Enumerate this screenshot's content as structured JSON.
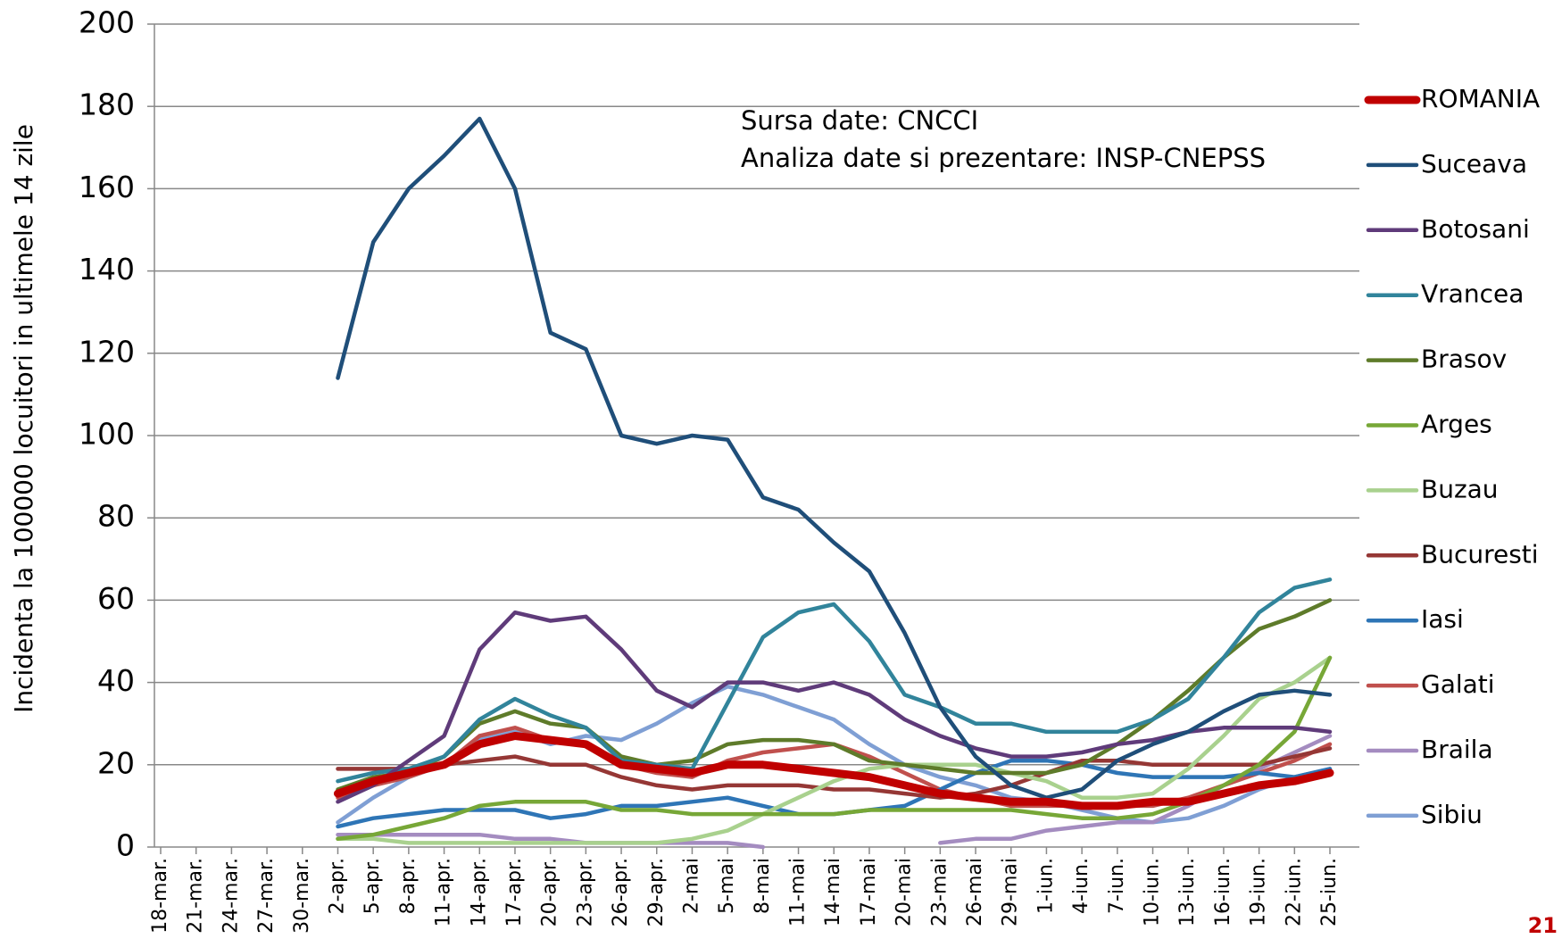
{
  "chart_data": {
    "type": "line",
    "y_label": "Incidenta la 100000 locuitori in ultimele 14 zile",
    "annotations": [
      "Sursa date: CNCCI",
      "Analiza date si prezentare: INSP-CNEPSS"
    ],
    "page_number": "21",
    "categories": [
      "18-mar.",
      "21-mar.",
      "24-mar.",
      "27-mar.",
      "30-mar.",
      "2-apr.",
      "5-apr.",
      "8-apr.",
      "11-apr.",
      "14-apr.",
      "17-apr.",
      "20-apr.",
      "23-apr.",
      "26-apr.",
      "29-apr.",
      "2-mai",
      "5-mai",
      "8-mai",
      "11-mai",
      "14-mai",
      "17-mai",
      "20-mai",
      "23-mai",
      "26-mai",
      "29-mai",
      "1-iun.",
      "4-iun.",
      "7-iun.",
      "10-iun.",
      "13-iun.",
      "16-iun.",
      "19-iun.",
      "22-iun.",
      "25-iun."
    ],
    "ylim": [
      0,
      200
    ],
    "yticks": [
      0,
      20,
      40,
      60,
      80,
      100,
      120,
      140,
      160,
      180,
      200
    ],
    "grid": true,
    "legend": "right",
    "series": [
      {
        "name": "ROMANIA",
        "color": "#c00000",
        "values": [
          null,
          null,
          null,
          null,
          null,
          13,
          16,
          18,
          20,
          25,
          27,
          26,
          25,
          20,
          19,
          18,
          20,
          20,
          19,
          18,
          17,
          15,
          13,
          12,
          11,
          11,
          10,
          10,
          11,
          11,
          13,
          15,
          16,
          18
        ]
      },
      {
        "name": "Suceava",
        "color": "#1f4e79",
        "values": [
          null,
          null,
          null,
          null,
          null,
          114,
          147,
          160,
          168,
          177,
          160,
          125,
          121,
          100,
          98,
          100,
          99,
          85,
          82,
          74,
          67,
          52,
          34,
          22,
          15,
          12,
          14,
          21,
          25,
          28,
          33,
          37,
          38,
          37
        ]
      },
      {
        "name": "Botosani",
        "color": "#5f3b7a",
        "values": [
          null,
          null,
          null,
          null,
          null,
          11,
          15,
          21,
          27,
          48,
          57,
          55,
          56,
          48,
          38,
          34,
          40,
          40,
          38,
          40,
          37,
          31,
          27,
          24,
          22,
          22,
          23,
          25,
          26,
          28,
          29,
          29,
          29,
          28
        ]
      },
      {
        "name": "Vrancea",
        "color": "#31849b",
        "values": [
          null,
          null,
          null,
          null,
          null,
          16,
          18,
          19,
          22,
          31,
          36,
          32,
          29,
          21,
          20,
          19,
          35,
          51,
          57,
          59,
          50,
          37,
          34,
          30,
          30,
          28,
          28,
          28,
          31,
          36,
          46,
          57,
          63,
          65
        ]
      },
      {
        "name": "Brasov",
        "color": "#5e7b2a",
        "values": [
          null,
          null,
          null,
          null,
          null,
          14,
          17,
          18,
          22,
          30,
          33,
          30,
          29,
          22,
          20,
          21,
          25,
          26,
          26,
          25,
          21,
          20,
          19,
          18,
          18,
          18,
          20,
          25,
          31,
          38,
          46,
          53,
          56,
          60
        ]
      },
      {
        "name": "Arges",
        "color": "#77a737",
        "values": [
          null,
          null,
          null,
          null,
          null,
          2,
          3,
          5,
          7,
          10,
          11,
          11,
          11,
          9,
          9,
          8,
          8,
          8,
          8,
          8,
          9,
          9,
          9,
          9,
          9,
          8,
          7,
          7,
          8,
          11,
          15,
          20,
          28,
          46
        ]
      },
      {
        "name": "Buzau",
        "color": "#a9d18e",
        "values": [
          null,
          null,
          null,
          null,
          null,
          2,
          2,
          1,
          1,
          1,
          1,
          1,
          1,
          1,
          1,
          2,
          4,
          8,
          12,
          16,
          19,
          20,
          20,
          20,
          18,
          16,
          12,
          12,
          13,
          19,
          27,
          36,
          40,
          46
        ]
      },
      {
        "name": "Bucuresti",
        "color": "#953735",
        "values": [
          null,
          null,
          null,
          null,
          null,
          19,
          19,
          19,
          20,
          21,
          22,
          20,
          20,
          17,
          15,
          14,
          15,
          15,
          15,
          14,
          14,
          13,
          12,
          13,
          15,
          18,
          21,
          21,
          20,
          20,
          20,
          20,
          22,
          24
        ]
      },
      {
        "name": "Iasi",
        "color": "#2e75b6",
        "values": [
          null,
          null,
          null,
          null,
          null,
          5,
          7,
          8,
          9,
          9,
          9,
          7,
          8,
          10,
          10,
          11,
          12,
          10,
          8,
          8,
          9,
          10,
          14,
          18,
          21,
          21,
          20,
          18,
          17,
          17,
          17,
          18,
          17,
          19
        ]
      },
      {
        "name": "Galati",
        "color": "#c0504d",
        "values": [
          null,
          null,
          null,
          null,
          null,
          12,
          15,
          17,
          20,
          27,
          29,
          26,
          25,
          20,
          18,
          17,
          21,
          23,
          24,
          25,
          22,
          18,
          14,
          12,
          10,
          10,
          10,
          10,
          10,
          12,
          15,
          18,
          21,
          25
        ]
      },
      {
        "name": "Braila",
        "color": "#a48cc0",
        "values": [
          null,
          null,
          null,
          null,
          null,
          3,
          3,
          3,
          3,
          3,
          2,
          2,
          1,
          1,
          1,
          1,
          1,
          0,
          null,
          null,
          null,
          null,
          1,
          2,
          2,
          4,
          5,
          6,
          6,
          10,
          15,
          19,
          23,
          27
        ]
      },
      {
        "name": "Sibiu",
        "color": "#7f9fd4",
        "values": [
          null,
          null,
          null,
          null,
          null,
          6,
          12,
          17,
          20,
          26,
          28,
          25,
          27,
          26,
          30,
          35,
          39,
          37,
          34,
          31,
          25,
          20,
          17,
          15,
          12,
          11,
          9,
          7,
          6,
          7,
          10,
          14,
          17,
          19
        ]
      }
    ]
  }
}
